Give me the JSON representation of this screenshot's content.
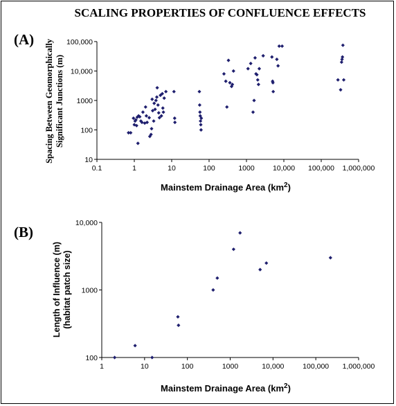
{
  "title": "SCALING PROPERTIES OF CONFLUENCE EFFECTS",
  "marker_color": "#1f1f6e",
  "chart_data": [
    {
      "type": "scatter",
      "panel_label": "(A)",
      "xlabel": "Mainstem Drainage Area (km",
      "xlabel_sup": "2",
      "xlabel_tail": ")",
      "ylabel": [
        "Spacing Between Geomorphically",
        "Significant Junctions (m)"
      ],
      "xscale": "log",
      "yscale": "log",
      "xlim": [
        0.1,
        1000000
      ],
      "ylim": [
        10,
        100000
      ],
      "x_ticks": [
        0.1,
        1,
        10,
        100,
        1000,
        10000,
        100000,
        1000000
      ],
      "x_tick_labels": [
        "0.1",
        "1",
        "10",
        "100",
        "1000",
        "10,000",
        "100,000",
        "1,000,000"
      ],
      "y_ticks": [
        10,
        100,
        1000,
        10000,
        100000
      ],
      "y_tick_labels": [
        "10",
        "100",
        "1000",
        "10,000",
        "100,000"
      ],
      "grid": false,
      "points": [
        [
          0.7,
          80
        ],
        [
          0.8,
          80
        ],
        [
          0.95,
          250
        ],
        [
          1.0,
          150
        ],
        [
          1.05,
          200
        ],
        [
          1.1,
          220
        ],
        [
          1.15,
          140
        ],
        [
          1.2,
          270
        ],
        [
          1.25,
          35
        ],
        [
          1.3,
          300
        ],
        [
          1.4,
          280
        ],
        [
          1.5,
          200
        ],
        [
          1.6,
          180
        ],
        [
          1.7,
          400
        ],
        [
          1.9,
          170
        ],
        [
          2.0,
          600
        ],
        [
          2.1,
          300
        ],
        [
          2.2,
          180
        ],
        [
          2.5,
          260
        ],
        [
          2.6,
          60
        ],
        [
          2.8,
          70
        ],
        [
          2.9,
          110
        ],
        [
          3.0,
          1100
        ],
        [
          3.1,
          450
        ],
        [
          3.3,
          200
        ],
        [
          3.4,
          800
        ],
        [
          3.6,
          500
        ],
        [
          3.8,
          1000
        ],
        [
          4.0,
          1300
        ],
        [
          4.1,
          2700
        ],
        [
          4.3,
          700
        ],
        [
          4.5,
          380
        ],
        [
          4.7,
          260
        ],
        [
          5.0,
          1500
        ],
        [
          5.3,
          300
        ],
        [
          5.6,
          1700
        ],
        [
          5.8,
          550
        ],
        [
          6.0,
          400
        ],
        [
          6.3,
          1200
        ],
        [
          7.0,
          2000
        ],
        [
          11.5,
          2000
        ],
        [
          12,
          250
        ],
        [
          12.2,
          180
        ],
        [
          55,
          2000
        ],
        [
          56,
          700
        ],
        [
          57,
          400
        ],
        [
          58,
          300
        ],
        [
          59,
          200
        ],
        [
          60,
          150
        ],
        [
          61,
          100
        ],
        [
          62,
          250
        ],
        [
          250,
          8000
        ],
        [
          280,
          4500
        ],
        [
          300,
          600
        ],
        [
          330,
          23000
        ],
        [
          360,
          4000
        ],
        [
          400,
          3000
        ],
        [
          420,
          3500
        ],
        [
          450,
          10000
        ],
        [
          1100,
          12000
        ],
        [
          1300,
          18000
        ],
        [
          1500,
          400
        ],
        [
          1600,
          1000
        ],
        [
          1700,
          28000
        ],
        [
          1800,
          8000
        ],
        [
          1900,
          7500
        ],
        [
          2000,
          5000
        ],
        [
          2100,
          3500
        ],
        [
          2200,
          12000
        ],
        [
          2800,
          33000
        ],
        [
          4800,
          30000
        ],
        [
          5000,
          4500
        ],
        [
          5100,
          4000
        ],
        [
          5200,
          2000
        ],
        [
          6500,
          25000
        ],
        [
          7000,
          15000
        ],
        [
          7500,
          70000
        ],
        [
          9000,
          70000
        ],
        [
          280000,
          5000
        ],
        [
          330000,
          2300
        ],
        [
          350000,
          20000
        ],
        [
          360000,
          25000
        ],
        [
          370000,
          30000
        ],
        [
          380000,
          75000
        ],
        [
          400000,
          5000
        ]
      ]
    },
    {
      "type": "scatter",
      "panel_label": "(B)",
      "xlabel": "Mainstem Drainage Area (km",
      "xlabel_sup": "2",
      "xlabel_tail": ")",
      "ylabel": [
        "Length of Influence (m)",
        "(habitat patch size)"
      ],
      "xscale": "log",
      "yscale": "log",
      "xlim": [
        1,
        1000000
      ],
      "ylim": [
        100,
        10000
      ],
      "x_ticks": [
        1,
        10,
        100,
        1000,
        10000,
        100000,
        1000000
      ],
      "x_tick_labels": [
        "1",
        "10",
        "100",
        "1000",
        "10,000",
        "100,000",
        "1,000,000"
      ],
      "y_ticks": [
        100,
        1000,
        10000
      ],
      "y_tick_labels": [
        "100",
        "1000",
        "10,000"
      ],
      "grid": false,
      "points": [
        [
          2,
          100
        ],
        [
          6,
          150
        ],
        [
          15,
          100
        ],
        [
          60,
          400
        ],
        [
          62,
          300
        ],
        [
          400,
          1000
        ],
        [
          500,
          1500
        ],
        [
          1200,
          4000
        ],
        [
          1700,
          7000
        ],
        [
          5000,
          2000
        ],
        [
          7000,
          2500
        ],
        [
          220000,
          3000
        ]
      ]
    }
  ]
}
